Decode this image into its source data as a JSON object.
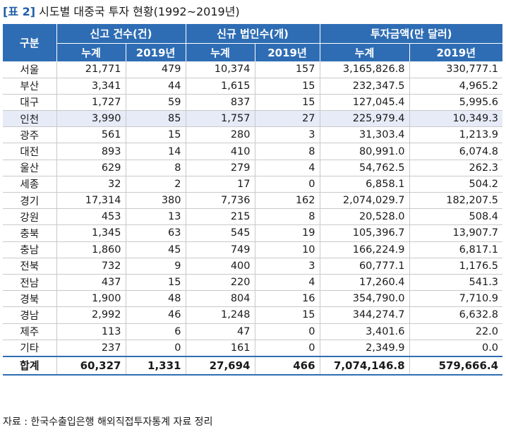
{
  "title": {
    "label": "[표 2]",
    "text": "시도별 대중국 투자 현황(1992~2019년)"
  },
  "header": {
    "group_col": "구분",
    "groups": [
      "신고 건수(건)",
      "신규 법인수(개)",
      "투자금액(만 달러)"
    ],
    "sub": [
      "누계",
      "2019년",
      "누계",
      "2019년",
      "누계",
      "2019년"
    ]
  },
  "rows": [
    [
      "서울",
      "21,771",
      "479",
      "10,374",
      "157",
      "3,165,826.8",
      "330,777.1"
    ],
    [
      "부산",
      "3,341",
      "44",
      "1,615",
      "15",
      "232,347.5",
      "4,965.2"
    ],
    [
      "대구",
      "1,727",
      "59",
      "837",
      "15",
      "127,045.4",
      "5,995.6"
    ],
    [
      "인천",
      "3,990",
      "85",
      "1,757",
      "27",
      "225,979.4",
      "10,349.3"
    ],
    [
      "광주",
      "561",
      "15",
      "280",
      "3",
      "31,303.4",
      "1,213.9"
    ],
    [
      "대전",
      "893",
      "14",
      "410",
      "8",
      "80,991.0",
      "6,074.8"
    ],
    [
      "울산",
      "629",
      "8",
      "279",
      "4",
      "54,762.5",
      "262.3"
    ],
    [
      "세종",
      "32",
      "2",
      "17",
      "0",
      "6,858.1",
      "504.2"
    ],
    [
      "경기",
      "17,314",
      "380",
      "7,736",
      "162",
      "2,074,029.7",
      "182,207.5"
    ],
    [
      "강원",
      "453",
      "13",
      "215",
      "8",
      "20,528.0",
      "508.4"
    ],
    [
      "충북",
      "1,345",
      "63",
      "545",
      "19",
      "105,396.7",
      "13,907.7"
    ],
    [
      "충남",
      "1,860",
      "45",
      "749",
      "10",
      "166,224.9",
      "6,817.1"
    ],
    [
      "전북",
      "732",
      "9",
      "400",
      "3",
      "60,777.1",
      "1,176.5"
    ],
    [
      "전남",
      "437",
      "15",
      "220",
      "4",
      "17,260.4",
      "541.3"
    ],
    [
      "경북",
      "1,900",
      "48",
      "804",
      "16",
      "354,790.0",
      "7,710.9"
    ],
    [
      "경남",
      "2,992",
      "46",
      "1,248",
      "15",
      "344,274.7",
      "6,632.8"
    ],
    [
      "제주",
      "113",
      "6",
      "47",
      "0",
      "3,401.6",
      "22.0"
    ],
    [
      "기타",
      "237",
      "0",
      "161",
      "0",
      "2,349.9",
      "0.0"
    ]
  ],
  "highlighted_region": "인천",
  "total": [
    "합계",
    "60,327",
    "1,331",
    "27,694",
    "466",
    "7,074,146.8",
    "579,666.4"
  ],
  "source": "자료 : 한국수출입은행 해외직접투자통계 자료 정리",
  "colors": {
    "header_bg": "#2e6db4",
    "highlight_row": "#e6ebf7",
    "title_label": "#1f5fa8"
  }
}
